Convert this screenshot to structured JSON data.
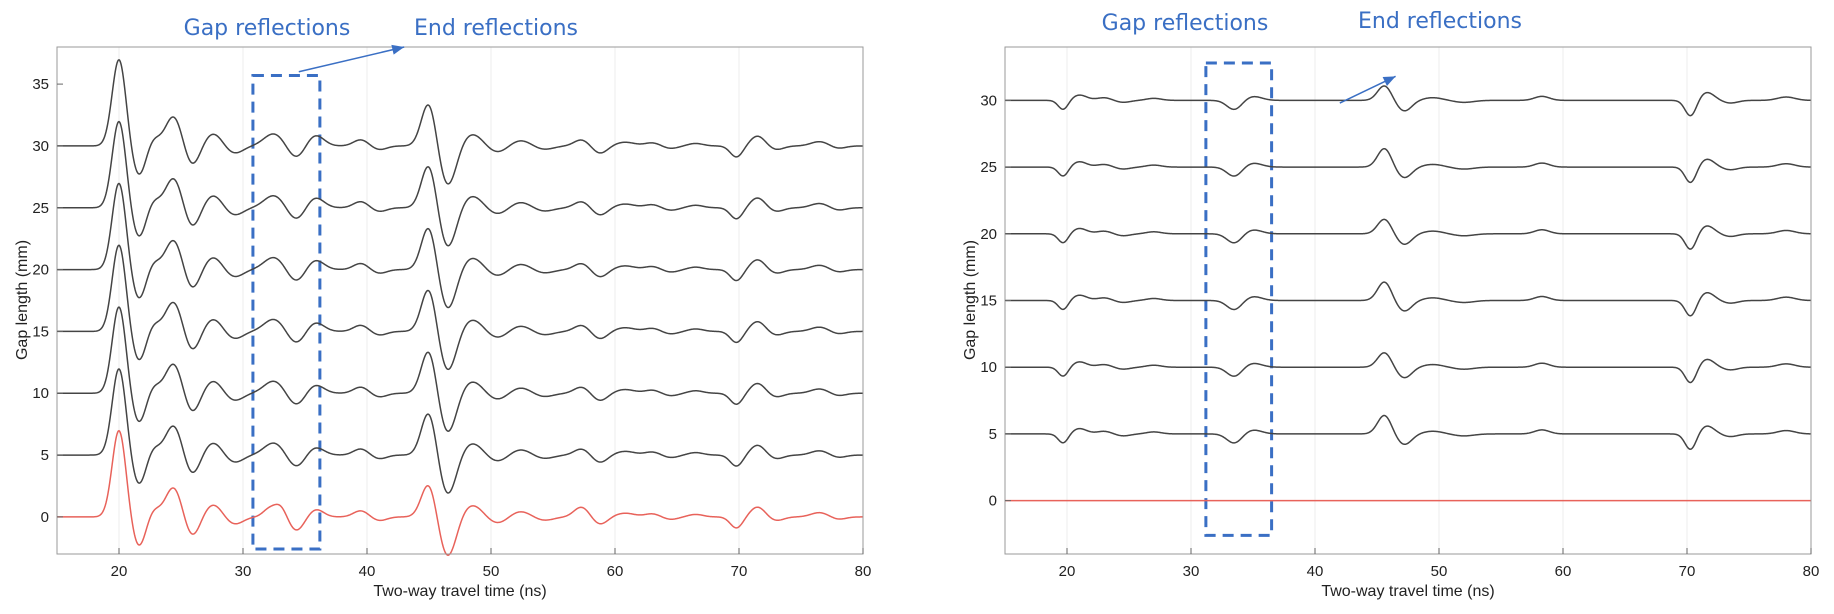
{
  "chart_data": [
    {
      "type": "line",
      "title": "",
      "xlabel": "Two-way travel time (ns)",
      "ylabel": "Gap length (mm)",
      "xlim": [
        15,
        80
      ],
      "ylim": [
        -3,
        38
      ],
      "xticks": [
        20,
        30,
        40,
        50,
        60,
        70,
        80
      ],
      "yticks": [
        0,
        5,
        10,
        15,
        20,
        25,
        30,
        35
      ],
      "grid": "vertical",
      "series": [
        {
          "offset": 0,
          "color": "#e8625a",
          "reference": true
        },
        {
          "offset": 5,
          "color": "#444444"
        },
        {
          "offset": 10,
          "color": "#444444"
        },
        {
          "offset": 15,
          "color": "#444444"
        },
        {
          "offset": 20,
          "color": "#444444"
        },
        {
          "offset": 25,
          "color": "#444444"
        },
        {
          "offset": 30,
          "color": "#444444"
        }
      ],
      "annotations": [
        {
          "text": "Gap reflections",
          "type": "label"
        },
        {
          "text": "End reflections",
          "type": "label"
        }
      ],
      "highlight_box": {
        "x0": 30.8,
        "x1": 36.2,
        "y0": -2.6,
        "y1": 35.7,
        "color": "#3a6fc4",
        "style": "dashed"
      },
      "arrow": {
        "from": [
          34.5,
          36.0
        ],
        "to": [
          43.0,
          38.0
        ],
        "color": "#3a6fc4"
      }
    },
    {
      "type": "line",
      "title": "",
      "xlabel": "Two-way travel time (ns)",
      "ylabel": "Gap length (mm)",
      "xlim": [
        15,
        80
      ],
      "ylim": [
        -4,
        34
      ],
      "xticks": [
        20,
        30,
        40,
        50,
        60,
        70,
        80
      ],
      "yticks": [
        0,
        5,
        10,
        15,
        20,
        25,
        30
      ],
      "grid": "vertical",
      "series": [
        {
          "offset": 0,
          "color": "#e8625a",
          "reference": true
        },
        {
          "offset": 5,
          "color": "#444444"
        },
        {
          "offset": 10,
          "color": "#444444"
        },
        {
          "offset": 15,
          "color": "#444444"
        },
        {
          "offset": 20,
          "color": "#444444"
        },
        {
          "offset": 25,
          "color": "#444444"
        },
        {
          "offset": 30,
          "color": "#444444"
        }
      ],
      "annotations": [
        {
          "text": "Gap reflections",
          "type": "label"
        },
        {
          "text": "End reflections",
          "type": "label"
        }
      ],
      "highlight_box": {
        "x0": 31.2,
        "x1": 36.5,
        "y0": -2.6,
        "y1": 32.8,
        "color": "#3a6fc4",
        "style": "dashed"
      },
      "arrow": {
        "from": [
          42.0,
          29.8
        ],
        "to": [
          46.5,
          31.8
        ],
        "color": "#3a6fc4"
      }
    }
  ]
}
